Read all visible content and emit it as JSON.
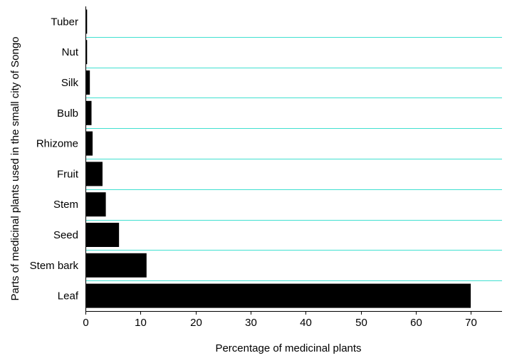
{
  "chart_data": {
    "type": "bar",
    "orientation": "horizontal",
    "categories": [
      "Tuber",
      "Nut",
      "Silk",
      "Bulb",
      "Rhizome",
      "Fruit",
      "Stem",
      "Seed",
      "Stem bark",
      "Leaf"
    ],
    "values": [
      0.3,
      0.3,
      0.8,
      1.1,
      1.3,
      3.1,
      3.7,
      6.1,
      11.1,
      70.0
    ],
    "xlabel": "Percentage of medicinal plants",
    "ylabel": "Parts of medicinal plants used in the small city of Songo",
    "xlim": [
      0,
      75
    ],
    "xticks": [
      0,
      10,
      20,
      30,
      40,
      50,
      60,
      70
    ],
    "grid": "horizontal",
    "colors": {
      "bar": "#000000",
      "grid": "#40e0d0",
      "axis": "#000000"
    }
  }
}
